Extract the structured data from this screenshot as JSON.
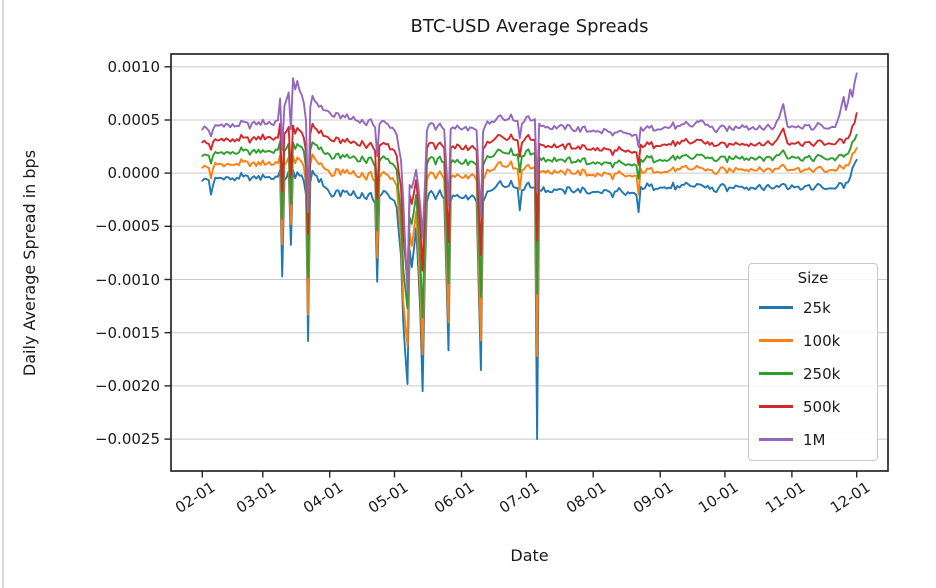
{
  "page": {
    "background_color": "#ffffff",
    "frame_edge_color": "#d8d8d8"
  },
  "chart_data": {
    "type": "line",
    "title": "BTC-USD Average Spreads",
    "xlabel": "Date",
    "ylabel": "Daily Average Spread in bps",
    "grid": "horizontal",
    "grid_color": "#c9c9c9",
    "spine_color": "#262626",
    "x_tick_labels": [
      "02-01",
      "03-01",
      "04-01",
      "05-01",
      "06-01",
      "07-01",
      "08-01",
      "09-01",
      "10-01",
      "11-01",
      "12-01"
    ],
    "x_tick_days": [
      0,
      28,
      59,
      89,
      120,
      150,
      181,
      212,
      242,
      273,
      303
    ],
    "y_ticks": [
      0.001,
      0.0005,
      0.0,
      -0.0005,
      -0.001,
      -0.0015,
      -0.002,
      -0.0025
    ],
    "y_tick_labels": [
      "0.0010",
      "0.0005",
      "0.0000",
      "−0.0005",
      "−0.0010",
      "−0.0015",
      "−0.0020",
      "−0.0025"
    ],
    "xlim_days": [
      -14.5,
      317.5
    ],
    "ylim": [
      -0.0028,
      0.00112
    ],
    "day_range": [
      0,
      303
    ],
    "legend": {
      "title": "Size",
      "position": "lower right",
      "entries": [
        {
          "label": "25k",
          "color": "#1f77b4"
        },
        {
          "label": "100k",
          "color": "#ff7f0e"
        },
        {
          "label": "250k",
          "color": "#2ca02c"
        },
        {
          "label": "500k",
          "color": "#d62728"
        },
        {
          "label": "1M",
          "color": "#9467bd"
        }
      ]
    },
    "value_scale": 0.0001,
    "noise_common": 5e-05,
    "noise_series": 1.8e-05,
    "keypoint_days": [
      0,
      3,
      4,
      6,
      10,
      14,
      18,
      22,
      26,
      30,
      33,
      35,
      36,
      37,
      38,
      40,
      41,
      42,
      43,
      44,
      45,
      47,
      48,
      49,
      50,
      51,
      53,
      55,
      58,
      60,
      62,
      64,
      66,
      68,
      70,
      72,
      74,
      76,
      78,
      80,
      81,
      82,
      84,
      86,
      88,
      90,
      92,
      93,
      95,
      96,
      97,
      99,
      101,
      102,
      103,
      104,
      106,
      108,
      110,
      112,
      114,
      115,
      117,
      119,
      121,
      123,
      125,
      127,
      129,
      130,
      132,
      134,
      136,
      138,
      140,
      142,
      144,
      146,
      147,
      148,
      150,
      152,
      154,
      155,
      156,
      158,
      161,
      164,
      167,
      170,
      173,
      176,
      179,
      181,
      184,
      187,
      190,
      193,
      196,
      199,
      201,
      202,
      203,
      206,
      209,
      212,
      215,
      218,
      221,
      224,
      227,
      230,
      232,
      235,
      238,
      241,
      244,
      247,
      250,
      253,
      256,
      259,
      262,
      265,
      269,
      271,
      273,
      276,
      279,
      282,
      285,
      288,
      291,
      293,
      295,
      297,
      298,
      300,
      301,
      302,
      303
    ],
    "series": [
      {
        "name": "25k",
        "color": "#1f77b4",
        "values": [
          -0.5,
          -0.7,
          -2.0,
          -0.5,
          -0.4,
          -0.6,
          -0.3,
          -0.5,
          -0.4,
          -0.3,
          -0.5,
          -0.2,
          0.2,
          -10.0,
          -0.5,
          0.0,
          -7.0,
          0.2,
          -0.2,
          0.1,
          -0.3,
          -0.5,
          -2.0,
          -16.0,
          -1.0,
          0.3,
          -0.3,
          -0.8,
          -1.5,
          -2.2,
          -1.8,
          -2.0,
          -1.6,
          -2.1,
          -1.8,
          -2.3,
          -1.9,
          -2.4,
          -2.0,
          -2.6,
          -10.3,
          -2.2,
          -1.8,
          -2.0,
          -2.4,
          -3.0,
          -8.0,
          -14.0,
          -20.0,
          -7.0,
          -9.0,
          -5.0,
          -13.0,
          -20.5,
          -10.0,
          -2.5,
          -1.8,
          -2.2,
          -1.9,
          -2.5,
          -16.8,
          -2.8,
          -2.0,
          -2.4,
          -2.1,
          -2.6,
          -2.2,
          -2.7,
          -18.4,
          -2.4,
          -1.9,
          -1.5,
          -1.0,
          -0.8,
          -1.2,
          -0.9,
          -1.1,
          -1.4,
          -3.4,
          -1.6,
          -1.0,
          -1.3,
          -1.1,
          -25.3,
          -1.6,
          -1.4,
          -1.7,
          -1.5,
          -1.8,
          -1.4,
          -1.7,
          -1.5,
          -1.9,
          -1.6,
          -1.9,
          -1.6,
          -2.0,
          -1.7,
          -2.1,
          -1.8,
          -2.0,
          -3.9,
          -1.4,
          -1.2,
          -1.4,
          -1.2,
          -1.5,
          -1.2,
          -1.4,
          -1.1,
          -1.3,
          -1.0,
          -1.2,
          -1.5,
          -1.6,
          -1.3,
          -1.5,
          -1.2,
          -1.1,
          -1.4,
          -1.2,
          -1.5,
          -1.2,
          -1.4,
          -0.9,
          -1.3,
          -1.1,
          -1.4,
          -1.2,
          -1.5,
          -1.2,
          -1.4,
          -1.6,
          -1.3,
          -0.9,
          -1.2,
          -1.0,
          -0.5,
          0.3,
          0.8,
          1.3
        ]
      },
      {
        "name": "100k",
        "color": "#ff7f0e",
        "values": [
          0.7,
          0.5,
          -0.3,
          0.8,
          0.9,
          0.7,
          1.0,
          0.8,
          0.9,
          1.0,
          0.8,
          1.1,
          1.6,
          -7.0,
          0.9,
          1.3,
          -5.0,
          1.5,
          1.2,
          1.4,
          1.1,
          0.9,
          -1.0,
          -13.5,
          0.5,
          1.7,
          1.2,
          0.8,
          0.3,
          -0.2,
          0.1,
          0.0,
          0.3,
          -0.1,
          0.1,
          -0.3,
          0.0,
          -0.4,
          -0.1,
          -0.6,
          -8.0,
          -0.3,
          0.0,
          -0.2,
          -0.5,
          -1.0,
          -6.0,
          -12.0,
          -16.5,
          -5.5,
          -7.0,
          -3.5,
          -11.0,
          -17.0,
          -8.0,
          -0.5,
          0.0,
          -0.3,
          0.0,
          -0.5,
          -14.0,
          -0.8,
          -0.1,
          -0.4,
          -0.2,
          -0.6,
          -0.2,
          -0.7,
          -15.5,
          -0.4,
          0.1,
          0.4,
          0.8,
          1.0,
          0.6,
          0.9,
          0.7,
          0.4,
          -1.5,
          0.3,
          0.8,
          0.5,
          0.7,
          -17.5,
          0.2,
          0.3,
          0.1,
          0.2,
          -0.1,
          0.2,
          0.0,
          0.1,
          -0.2,
          0.0,
          -0.3,
          0.0,
          -0.3,
          -0.1,
          -0.4,
          -0.2,
          -0.3,
          -2.2,
          0.2,
          0.3,
          0.2,
          0.3,
          0.1,
          0.4,
          0.2,
          0.5,
          0.3,
          0.6,
          0.4,
          0.2,
          0.1,
          0.3,
          0.2,
          0.4,
          0.5,
          0.3,
          0.4,
          0.2,
          0.4,
          0.3,
          0.8,
          0.4,
          0.5,
          0.3,
          0.4,
          0.2,
          0.4,
          0.3,
          0.1,
          0.3,
          0.7,
          0.5,
          0.6,
          1.0,
          1.6,
          1.9,
          2.3
        ]
      },
      {
        "name": "250k",
        "color": "#2ca02c",
        "values": [
          1.8,
          1.6,
          1.0,
          1.9,
          2.0,
          1.8,
          2.1,
          1.9,
          2.0,
          2.1,
          2.0,
          2.3,
          2.9,
          -4.5,
          2.2,
          2.6,
          -3.0,
          2.8,
          2.5,
          2.7,
          2.4,
          2.2,
          0.5,
          -10.0,
          2.0,
          3.0,
          2.6,
          2.2,
          1.8,
          1.4,
          1.6,
          1.5,
          1.7,
          1.4,
          1.6,
          1.2,
          1.5,
          1.1,
          1.3,
          0.9,
          -5.5,
          1.2,
          1.4,
          1.2,
          0.9,
          0.4,
          -4.0,
          -9.0,
          -13.0,
          -4.0,
          -5.0,
          -2.0,
          -8.0,
          -13.5,
          -6.0,
          1.0,
          1.4,
          1.1,
          1.3,
          0.9,
          -10.5,
          0.7,
          1.2,
          0.9,
          1.1,
          0.8,
          1.1,
          0.7,
          -11.5,
          1.0,
          1.4,
          1.7,
          2.1,
          2.2,
          1.9,
          2.1,
          2.0,
          1.7,
          0.0,
          1.6,
          2.1,
          1.8,
          2.0,
          -11.5,
          1.5,
          1.4,
          1.2,
          1.3,
          1.1,
          1.3,
          1.1,
          1.2,
          0.9,
          1.1,
          0.8,
          1.0,
          0.7,
          0.9,
          0.6,
          0.8,
          0.7,
          -0.8,
          1.2,
          1.4,
          1.3,
          1.4,
          1.2,
          1.5,
          1.3,
          1.6,
          1.4,
          1.8,
          1.6,
          1.3,
          1.2,
          1.4,
          1.3,
          1.5,
          1.6,
          1.4,
          1.5,
          1.3,
          1.5,
          1.4,
          2.2,
          1.5,
          1.6,
          1.4,
          1.5,
          1.3,
          1.5,
          1.4,
          1.2,
          1.4,
          1.8,
          1.6,
          1.7,
          2.2,
          2.7,
          3.0,
          3.5
        ]
      },
      {
        "name": "500k",
        "color": "#d62728",
        "values": [
          3.0,
          2.8,
          2.3,
          3.1,
          3.2,
          3.0,
          3.3,
          3.1,
          3.3,
          3.4,
          3.2,
          3.6,
          4.6,
          -2.0,
          3.8,
          4.2,
          -0.5,
          4.4,
          4.0,
          4.3,
          3.9,
          3.6,
          2.0,
          -6.0,
          3.5,
          4.6,
          4.2,
          3.8,
          3.4,
          3.0,
          3.1,
          3.0,
          3.2,
          2.9,
          3.0,
          2.7,
          2.9,
          2.5,
          2.7,
          2.3,
          -2.5,
          2.6,
          2.8,
          2.6,
          2.3,
          1.8,
          -1.5,
          -5.5,
          -10.5,
          -2.0,
          -3.0,
          -0.5,
          -5.0,
          -9.0,
          -3.5,
          2.5,
          2.8,
          2.5,
          2.7,
          2.3,
          -6.5,
          2.1,
          2.6,
          2.3,
          2.5,
          2.2,
          2.5,
          2.1,
          -7.5,
          2.4,
          2.8,
          3.1,
          3.5,
          3.6,
          3.3,
          3.5,
          3.4,
          3.1,
          1.5,
          3.0,
          3.5,
          3.2,
          3.4,
          -6.5,
          2.9,
          2.7,
          2.5,
          2.6,
          2.4,
          2.6,
          2.4,
          2.5,
          2.2,
          2.4,
          2.1,
          2.3,
          2.0,
          2.2,
          1.9,
          2.0,
          1.9,
          0.6,
          2.6,
          2.7,
          2.6,
          2.8,
          2.6,
          2.9,
          2.7,
          3.0,
          2.8,
          3.2,
          3.0,
          2.7,
          2.6,
          2.7,
          2.6,
          2.8,
          2.9,
          2.7,
          2.8,
          2.6,
          2.9,
          2.7,
          4.3,
          2.9,
          3.0,
          2.8,
          2.9,
          2.7,
          2.9,
          2.8,
          2.6,
          2.8,
          3.2,
          3.0,
          3.1,
          3.6,
          4.2,
          4.6,
          5.7
        ]
      },
      {
        "name": "1M",
        "color": "#9467bd",
        "values": [
          4.3,
          4.1,
          3.6,
          4.4,
          4.6,
          4.4,
          4.7,
          4.5,
          4.7,
          4.8,
          4.6,
          5.2,
          7.0,
          2.0,
          6.5,
          7.5,
          4.0,
          8.8,
          8.0,
          8.6,
          7.6,
          6.8,
          5.0,
          -4.0,
          6.0,
          7.2,
          6.6,
          6.2,
          5.8,
          5.4,
          5.5,
          5.3,
          5.4,
          5.1,
          5.2,
          4.9,
          5.0,
          4.7,
          4.8,
          4.5,
          1.5,
          4.6,
          4.8,
          4.6,
          4.3,
          3.8,
          1.0,
          -2.5,
          -11.5,
          -1.0,
          -1.5,
          0.5,
          -3.0,
          -6.0,
          -1.5,
          4.2,
          4.6,
          4.3,
          4.5,
          4.1,
          -3.0,
          3.9,
          4.4,
          4.1,
          4.3,
          4.0,
          4.3,
          3.9,
          -4.0,
          4.2,
          4.6,
          4.9,
          5.3,
          5.4,
          5.1,
          5.3,
          5.2,
          4.9,
          3.3,
          4.8,
          5.3,
          5.0,
          5.2,
          -2.0,
          4.7,
          4.5,
          4.3,
          4.4,
          4.2,
          4.4,
          4.1,
          4.2,
          3.9,
          4.1,
          3.8,
          4.0,
          3.7,
          3.8,
          3.6,
          3.6,
          3.5,
          2.2,
          4.2,
          4.3,
          4.2,
          4.4,
          4.2,
          4.5,
          4.3,
          4.6,
          4.4,
          5.0,
          4.8,
          4.3,
          4.0,
          4.2,
          4.1,
          4.3,
          4.6,
          4.2,
          4.4,
          4.1,
          4.4,
          4.2,
          6.5,
          4.5,
          4.6,
          4.3,
          4.5,
          4.2,
          4.5,
          4.3,
          4.1,
          4.4,
          5.5,
          7.2,
          5.8,
          7.8,
          7.0,
          8.4,
          9.4
        ]
      }
    ]
  }
}
